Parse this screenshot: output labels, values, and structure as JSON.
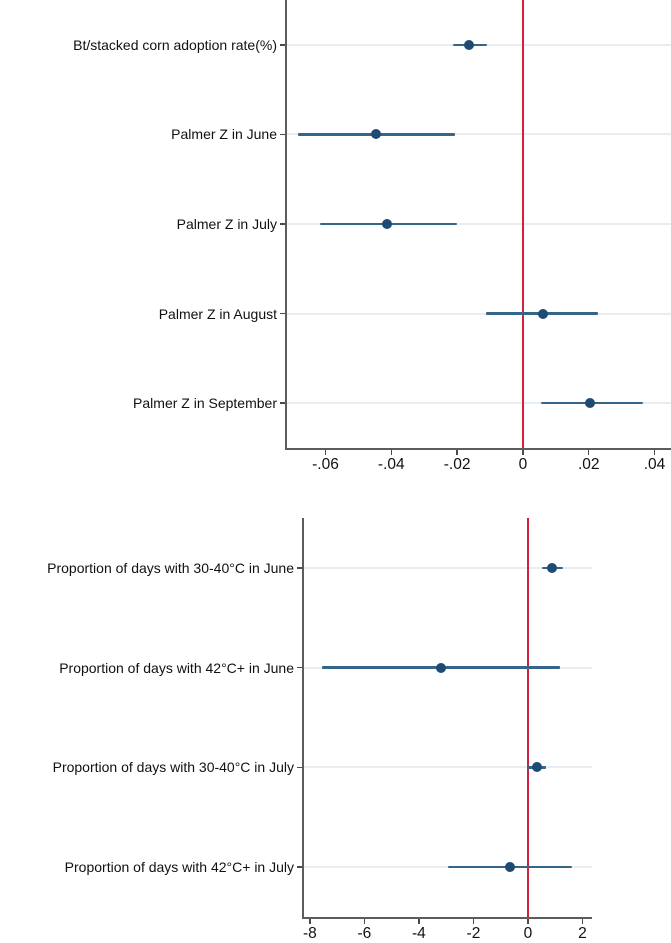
{
  "figure": {
    "background": "#ffffff",
    "description": "Two stacked coefficient plots (point estimates with confidence intervals) against a red zero line"
  },
  "colors": {
    "marker": "#1d4b73",
    "ci_line": "#36658a",
    "zero_line": "#d41f3f",
    "axis": "#5c5c5c",
    "tick": "#4a4a4a",
    "gridline": "#e9edf2",
    "text": "#111111"
  },
  "chart_data": [
    {
      "type": "scatter",
      "subtype": "coefplot-horizontal-ci",
      "title": "",
      "xlabel": "",
      "ylabel": "",
      "grid": true,
      "legend_position": "none",
      "zero_line_x": 0,
      "categories": [
        "Bt/stacked corn adoption rate(%)",
        "Palmer Z in June",
        "Palmer Z in July",
        "Palmer Z in August",
        "Palmer Z in September"
      ],
      "series": [
        {
          "name": "estimate",
          "values": [
            -0.0165,
            -0.0447,
            -0.0413,
            0.006,
            0.0205
          ]
        }
      ],
      "ci_low": [
        -0.0213,
        -0.0684,
        -0.0617,
        -0.0112,
        0.0055
      ],
      "ci_high": [
        -0.0109,
        -0.0207,
        -0.02,
        0.0228,
        0.0365
      ],
      "xlim": [
        -0.0723,
        0.045
      ],
      "xticks": [
        -0.06,
        -0.04,
        -0.02,
        0,
        0.02,
        0.04
      ],
      "xtick_labels": [
        "-.06",
        "-.04",
        "-.02",
        "0",
        ".02",
        ".04"
      ]
    },
    {
      "type": "scatter",
      "subtype": "coefplot-horizontal-ci",
      "title": "",
      "xlabel": "",
      "ylabel": "",
      "grid": true,
      "legend_position": "none",
      "zero_line_x": 0,
      "categories": [
        "Proportion of days with 30-40°C in June",
        "Proportion of days with 42°C+ in June",
        "Proportion of days with 30-40°C in July",
        "Proportion of days with 42°C+ in July"
      ],
      "series": [
        {
          "name": "estimate",
          "values": [
            0.88,
            -3.19,
            0.33,
            -0.66
          ]
        }
      ],
      "ci_low": [
        0.51,
        -7.56,
        -0.02,
        -2.94
      ],
      "ci_high": [
        1.28,
        1.17,
        0.66,
        1.61
      ],
      "xlim": [
        -8.29,
        2.35
      ],
      "xticks": [
        -8,
        -6,
        -4,
        -2,
        0,
        2
      ],
      "xtick_labels": [
        "-8",
        "-6",
        "-4",
        "-2",
        "0",
        "2"
      ]
    }
  ]
}
